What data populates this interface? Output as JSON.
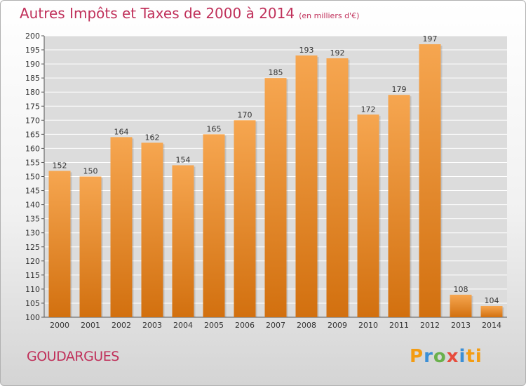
{
  "title": "Autres Impôts et Taxes de 2000 à 2014",
  "unit": "(en milliers d'€)",
  "commune": "GOUDARGUES",
  "brand": {
    "letters": [
      "P",
      "r",
      "o",
      "x",
      "i",
      "ti"
    ]
  },
  "colors": {
    "bar_top": "#f6a650",
    "bar_bottom": "#d2700f",
    "title": "#c0305a",
    "grid": "#ffffff",
    "plot_bg": "#dcdcdc"
  },
  "chart_data": {
    "type": "bar",
    "categories": [
      "2000",
      "2001",
      "2002",
      "2003",
      "2004",
      "2005",
      "2006",
      "2007",
      "2008",
      "2009",
      "2010",
      "2011",
      "2012",
      "2013",
      "2014"
    ],
    "values": [
      152,
      150,
      164,
      162,
      154,
      165,
      170,
      185,
      193,
      192,
      172,
      179,
      197,
      108,
      104
    ],
    "ylim": [
      100,
      200
    ],
    "ytick_step": 5,
    "grid": true,
    "xlabel": "",
    "ylabel": ""
  }
}
